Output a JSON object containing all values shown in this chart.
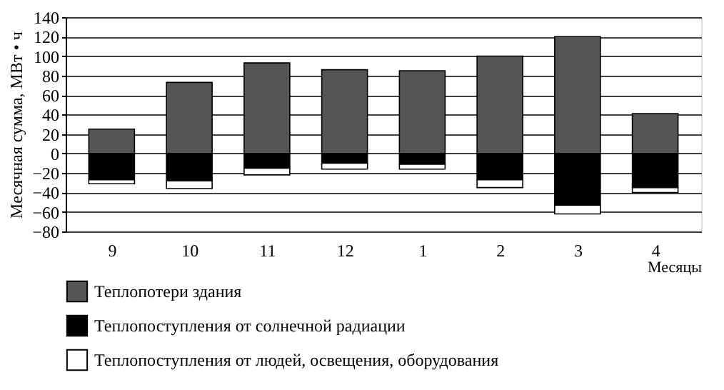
{
  "chart_data": {
    "type": "bar",
    "stacked": true,
    "ylabel": "Месячная сумма, МВт • ч",
    "xlabel": "Месяцы",
    "categories": [
      "9",
      "10",
      "11",
      "12",
      "1",
      "2",
      "3",
      "4"
    ],
    "series": [
      {
        "name": "Теплопотери здания",
        "color": "#555555",
        "values": [
          25,
          73,
          93,
          86,
          85,
          100,
          120,
          41
        ]
      },
      {
        "name": "Теплопоступления от солнечной радиации",
        "color": "#000000",
        "values": [
          -27,
          -28,
          -15,
          -10,
          -11,
          -27,
          -53,
          -35
        ]
      },
      {
        "name": "Теплопоступления от людей, освещения, оборудования",
        "color": "#ffffff",
        "values": [
          -4,
          -8,
          -7,
          -6,
          -5,
          -8,
          -9,
          -5
        ]
      }
    ],
    "ylim": [
      -80,
      140
    ],
    "yticks": [
      -80,
      -60,
      -40,
      -20,
      0,
      20,
      40,
      60,
      80,
      100,
      120,
      140
    ],
    "grid": "y",
    "legend": "bottom"
  }
}
